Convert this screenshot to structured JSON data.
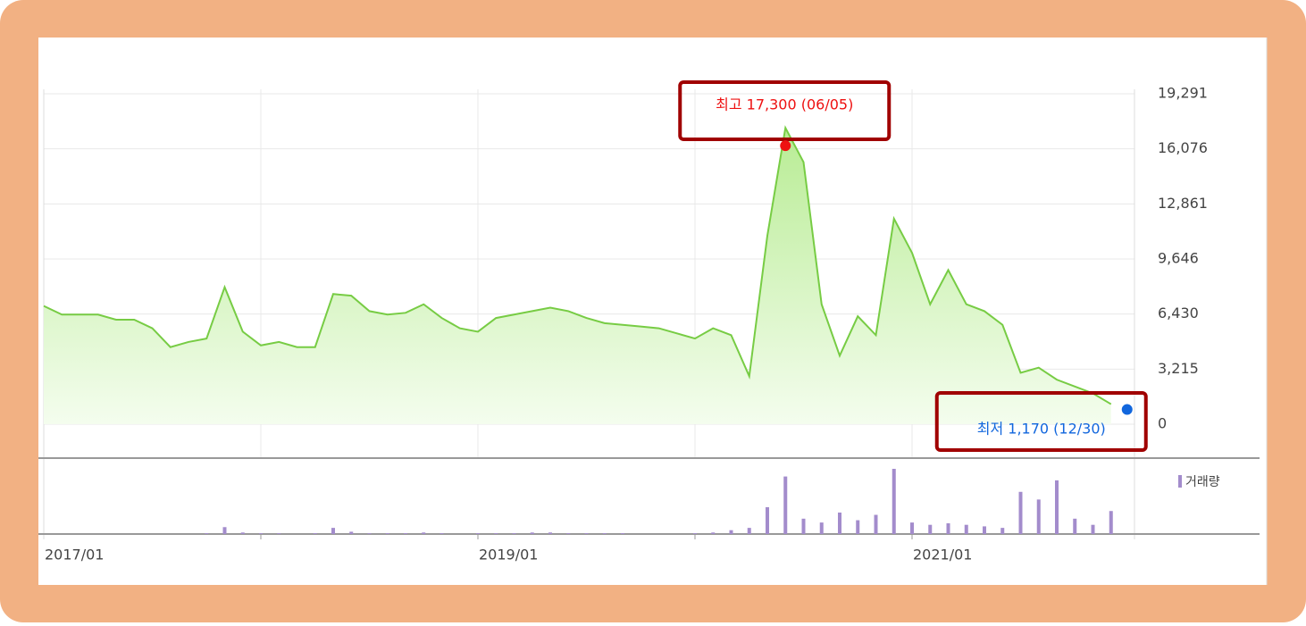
{
  "chart_data": [
    {
      "type": "line",
      "color": "#77cc44",
      "x": [
        "2017/01",
        null,
        null,
        null,
        null,
        null,
        null,
        null,
        null,
        null,
        null,
        null,
        null,
        null,
        null,
        null,
        null,
        null,
        null,
        null,
        null,
        null,
        null,
        null,
        "2019/01",
        null,
        null,
        null,
        null,
        null,
        null,
        null,
        null,
        null,
        null,
        null,
        null,
        null,
        null,
        null,
        null,
        null,
        null,
        null,
        null,
        null,
        null,
        null,
        "2021/01",
        null,
        null,
        null,
        null,
        null,
        null,
        null,
        null,
        null,
        null,
        null
      ],
      "values": [
        6900,
        6400,
        6400,
        6400,
        6100,
        6100,
        5600,
        4500,
        4800,
        5000,
        8000,
        5400,
        4600,
        4800,
        4500,
        4500,
        7600,
        7500,
        6600,
        6400,
        6500,
        7000,
        6200,
        5600,
        5400,
        6200,
        6400,
        6600,
        6800,
        6600,
        6200,
        5900,
        5800,
        5700,
        5600,
        5300,
        5000,
        5600,
        5200,
        2800,
        11000,
        17300,
        15300,
        7000,
        4000,
        6300,
        5200,
        12000,
        10000,
        7000,
        9000,
        7000,
        6600,
        5800,
        3000,
        3300,
        2600,
        2200,
        1800,
        1170
      ],
      "ylim": [
        0,
        19291
      ],
      "yticks": [
        0,
        {
          "value": 3215,
          "label": "3,215"
        },
        {
          "value": 6430,
          "label": "6,430"
        },
        {
          "value": 9646,
          "label": "9,646"
        },
        {
          "value": 12861,
          "label": "12,861"
        },
        {
          "value": 16076,
          "label": "16,076"
        },
        {
          "value": 19291,
          "label": "19,291"
        }
      ],
      "grid": true,
      "annotations": [
        {
          "text": "최고 17,300 (06/05)",
          "value": 17300,
          "color": "#ee1111"
        },
        {
          "text": "최저 1,170 (12/30)",
          "value": 1170,
          "color": "#1166dd"
        }
      ]
    },
    {
      "type": "bar",
      "name": "거래량",
      "color": "#a38ccc",
      "values": [
        0,
        0,
        0,
        0,
        0,
        0,
        0,
        0,
        0,
        1,
        9,
        2,
        1,
        1,
        0,
        1,
        8,
        3,
        1,
        1,
        1,
        2,
        1,
        0,
        1,
        1,
        1,
        2,
        2,
        1,
        1,
        1,
        1,
        0,
        0,
        0,
        1,
        2,
        5,
        8,
        35,
        75,
        20,
        15,
        28,
        18,
        25,
        85,
        15,
        12,
        14,
        12,
        10,
        8,
        55,
        45,
        70,
        20,
        12,
        30
      ]
    }
  ]
}
